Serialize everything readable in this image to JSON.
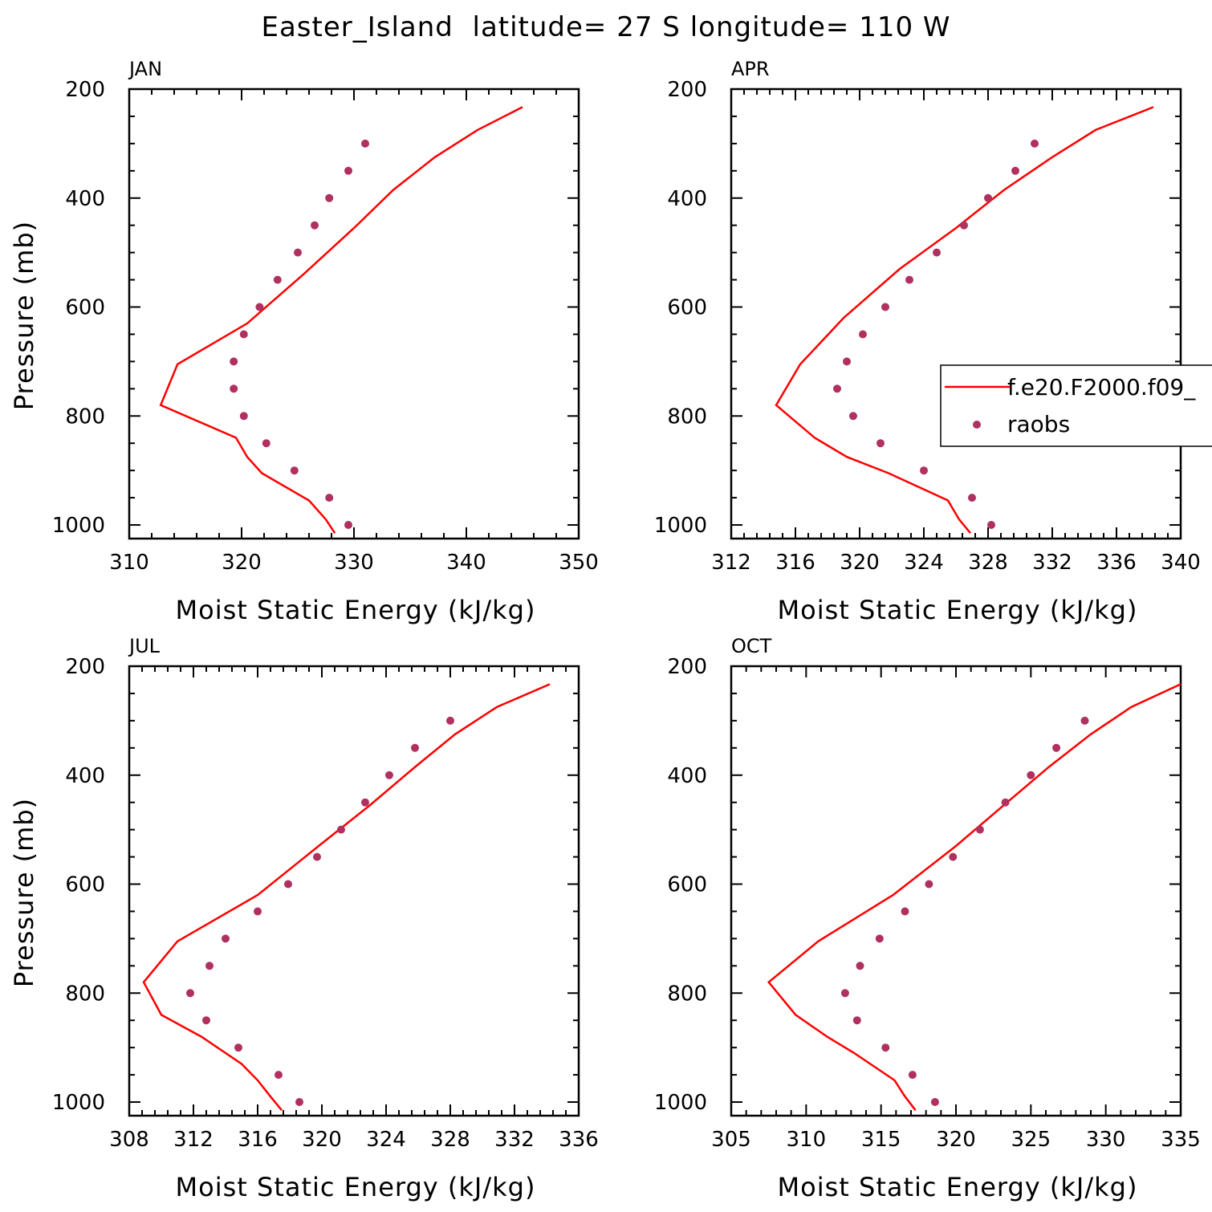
{
  "figure": {
    "title": "Easter_Island  latitude= 27 S longitude= 110 W"
  },
  "legend": {
    "model_label": "f.e20.F2000.f09_",
    "obs_label": "raobs"
  },
  "colors": {
    "model_line": "#ff0000",
    "obs_marker": "#b03060",
    "axis": "#000000"
  },
  "chart_data": [
    {
      "type": "line",
      "panel": "JAN",
      "xlabel": "Moist Static Energy (kJ/kg)",
      "ylabel": "Pressure (mb)",
      "xlim": [
        310,
        350
      ],
      "ylim": [
        200,
        1025
      ],
      "y_inverted": true,
      "xticks": [
        310,
        320,
        330,
        340,
        350
      ],
      "yticks": [
        200,
        400,
        600,
        800,
        1000
      ],
      "series": [
        {
          "kind": "line",
          "x": [
            345.0,
            341.0,
            337.2,
            333.5,
            330.0,
            325.5,
            320.5,
            314.3,
            312.8,
            319.5,
            320.5,
            321.8,
            326.0,
            327.5,
            328.3
          ],
          "y": [
            233,
            275,
            325,
            385,
            455,
            540,
            630,
            705,
            780,
            840,
            875,
            905,
            955,
            990,
            1015
          ]
        },
        {
          "kind": "scatter",
          "x": [
            331.0,
            329.5,
            327.8,
            326.5,
            325.0,
            323.2,
            321.6,
            320.2,
            319.3,
            319.3,
            320.2,
            322.2,
            324.7,
            327.8,
            329.5
          ],
          "y": [
            300,
            350,
            400,
            450,
            500,
            550,
            600,
            650,
            700,
            750,
            800,
            850,
            900,
            950,
            1000
          ]
        }
      ]
    },
    {
      "type": "line",
      "panel": "APR",
      "xlabel": "Moist Static Energy (kJ/kg)",
      "ylabel": "",
      "xlim": [
        312,
        340
      ],
      "ylim": [
        200,
        1025
      ],
      "y_inverted": true,
      "xticks": [
        312,
        316,
        320,
        324,
        328,
        332,
        336,
        340
      ],
      "yticks": [
        200,
        400,
        600,
        800,
        1000
      ],
      "series": [
        {
          "kind": "line",
          "x": [
            338.3,
            334.7,
            332.0,
            329.0,
            326.0,
            322.5,
            319.0,
            316.3,
            314.8,
            317.2,
            319.2,
            321.8,
            325.5,
            326.2,
            326.9
          ],
          "y": [
            233,
            275,
            325,
            385,
            455,
            530,
            620,
            705,
            780,
            840,
            875,
            905,
            955,
            990,
            1015
          ]
        },
        {
          "kind": "scatter",
          "x": [
            330.9,
            329.7,
            328.0,
            326.5,
            324.8,
            323.1,
            321.6,
            320.2,
            319.2,
            318.6,
            319.6,
            321.3,
            324.0,
            327.0,
            328.2
          ],
          "y": [
            300,
            350,
            400,
            450,
            500,
            550,
            600,
            650,
            700,
            750,
            800,
            850,
            900,
            950,
            1000
          ]
        }
      ]
    },
    {
      "type": "line",
      "panel": "JUL",
      "xlabel": "Moist Static Energy (kJ/kg)",
      "ylabel": "Pressure (mb)",
      "xlim": [
        308,
        336
      ],
      "ylim": [
        200,
        1025
      ],
      "y_inverted": true,
      "xticks": [
        308,
        312,
        316,
        320,
        324,
        328,
        332,
        336
      ],
      "yticks": [
        200,
        400,
        600,
        800,
        1000
      ],
      "series": [
        {
          "kind": "line",
          "x": [
            334.2,
            330.9,
            328.3,
            325.8,
            323.0,
            319.8,
            316.0,
            311.0,
            308.9,
            310.0,
            312.5,
            315.0,
            316.0,
            316.8,
            317.5
          ],
          "y": [
            233,
            275,
            325,
            385,
            455,
            530,
            620,
            705,
            780,
            840,
            880,
            930,
            960,
            990,
            1015
          ]
        },
        {
          "kind": "scatter",
          "x": [
            328.0,
            325.8,
            324.2,
            322.7,
            321.2,
            319.7,
            317.9,
            316.0,
            314.0,
            313.0,
            311.8,
            312.8,
            314.8,
            317.3,
            318.6
          ],
          "y": [
            300,
            350,
            400,
            450,
            500,
            550,
            600,
            650,
            700,
            750,
            800,
            850,
            900,
            950,
            1000
          ]
        }
      ]
    },
    {
      "type": "line",
      "panel": "OCT",
      "xlabel": "Moist Static Energy (kJ/kg)",
      "ylabel": "",
      "xlim": [
        305,
        335
      ],
      "ylim": [
        200,
        1025
      ],
      "y_inverted": true,
      "xticks": [
        305,
        310,
        315,
        320,
        325,
        330,
        335
      ],
      "yticks": [
        200,
        400,
        600,
        800,
        1000
      ],
      "series": [
        {
          "kind": "line",
          "x": [
            335.0,
            331.7,
            329.0,
            326.2,
            323.2,
            320.0,
            315.8,
            310.8,
            307.5,
            309.3,
            311.4,
            313.2,
            315.9,
            316.6,
            317.3
          ],
          "y": [
            233,
            275,
            325,
            385,
            455,
            530,
            620,
            705,
            780,
            840,
            880,
            910,
            960,
            990,
            1015
          ]
        },
        {
          "kind": "scatter",
          "x": [
            328.6,
            326.7,
            325.0,
            323.3,
            321.6,
            319.8,
            318.2,
            316.6,
            314.9,
            313.6,
            312.6,
            313.4,
            315.3,
            317.1,
            318.6
          ],
          "y": [
            300,
            350,
            400,
            450,
            500,
            550,
            600,
            650,
            700,
            750,
            800,
            850,
            900,
            950,
            1000
          ]
        }
      ]
    }
  ]
}
